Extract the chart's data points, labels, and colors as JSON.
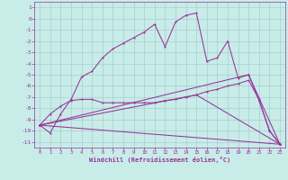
{
  "bg_color": "#c8ece8",
  "grid_color": "#9dc8c8",
  "line_color": "#993399",
  "xlabel": "Windchill (Refroidissement éolien,°C)",
  "xlim": [
    -0.5,
    23.5
  ],
  "ylim": [
    -11.5,
    1.5
  ],
  "xticks": [
    0,
    1,
    2,
    3,
    4,
    5,
    6,
    7,
    8,
    9,
    10,
    11,
    12,
    13,
    14,
    15,
    16,
    17,
    18,
    19,
    20,
    21,
    22,
    23
  ],
  "yticks": [
    1,
    0,
    -1,
    -2,
    -3,
    -4,
    -5,
    -6,
    -7,
    -8,
    -9,
    -10,
    -11
  ],
  "series": [
    {
      "x": [
        0,
        1,
        2,
        3,
        4,
        5,
        6,
        7,
        8,
        9,
        10,
        11,
        12,
        13,
        14,
        15,
        16,
        17,
        18,
        19,
        20,
        21,
        22,
        23
      ],
      "y": [
        -9.5,
        -10.2,
        -8.5,
        -7.2,
        -5.2,
        -4.7,
        -3.5,
        -2.7,
        -2.2,
        -1.7,
        -1.2,
        -0.5,
        -2.5,
        -0.3,
        0.3,
        0.5,
        -3.8,
        -3.5,
        -2.0,
        -5.3,
        -5.0,
        -7.3,
        -10.0,
        -11.2
      ]
    },
    {
      "x": [
        0,
        1,
        2,
        3,
        4,
        5,
        6,
        7,
        8,
        9,
        10,
        11,
        12,
        13,
        14,
        15,
        16,
        17,
        18,
        19,
        20,
        21,
        22,
        23
      ],
      "y": [
        -9.5,
        -8.5,
        -7.8,
        -7.3,
        -7.2,
        -7.2,
        -7.5,
        -7.5,
        -7.5,
        -7.5,
        -7.5,
        -7.5,
        -7.3,
        -7.2,
        -7.0,
        -6.8,
        -6.5,
        -6.3,
        -6.0,
        -5.8,
        -5.5,
        -7.2,
        -10.0,
        -11.2
      ]
    },
    {
      "x": [
        0,
        23
      ],
      "y": [
        -9.5,
        -11.2
      ]
    },
    {
      "x": [
        0,
        15,
        23
      ],
      "y": [
        -9.5,
        -6.8,
        -11.2
      ]
    },
    {
      "x": [
        0,
        20,
        23
      ],
      "y": [
        -9.5,
        -5.0,
        -11.2
      ]
    }
  ]
}
